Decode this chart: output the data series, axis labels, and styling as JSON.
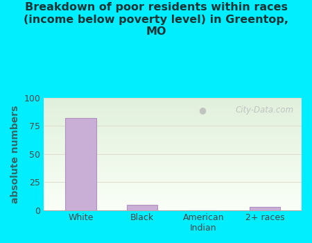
{
  "categories": [
    "White",
    "Black",
    "American\nIndian",
    "2+ races"
  ],
  "values": [
    82,
    5,
    0,
    3
  ],
  "bar_color": "#c9aed6",
  "bar_edge_color": "#b090c0",
  "title": "Breakdown of poor residents within races\n(income below poverty level) in Greentop,\nMO",
  "ylabel": "absolute numbers",
  "ylim": [
    0,
    100
  ],
  "yticks": [
    0,
    25,
    50,
    75,
    100
  ],
  "background_color": "#00eeff",
  "plot_bg_topleft": "#ddeedd",
  "plot_bg_bottomright": "#f8fff8",
  "grid_color": "#ddddcc",
  "title_color": "#1a3333",
  "axis_label_color": "#336666",
  "tick_color": "#444444",
  "watermark": "City-Data.com",
  "title_fontsize": 11.5,
  "ylabel_fontsize": 10,
  "bar_width": 0.5
}
